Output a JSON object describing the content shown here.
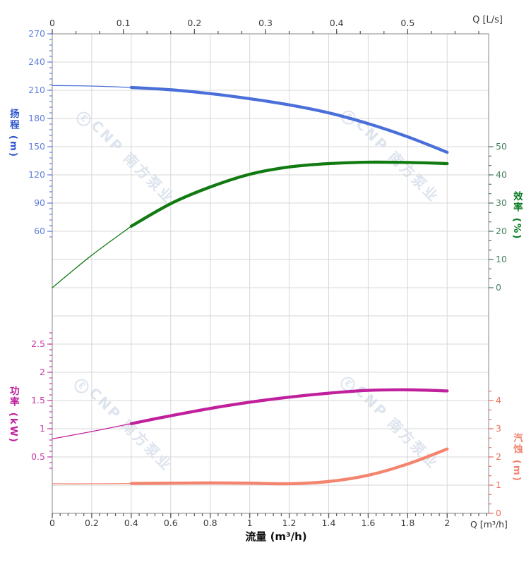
{
  "watermark": {
    "logo_glyph": "Ɛ",
    "text": "CNP 南方泵业",
    "color": "#dde4ee"
  },
  "labels": {
    "flow_axis_label": "流量 (m³/h)",
    "top_axis_unit": "Q [L/s]",
    "bottom_axis_unit": "Q [m³/h]",
    "head_axis_title": "扬程 (m)",
    "efficiency_axis_title": "效率 (%)",
    "power_axis_title": "功率 (kW)",
    "npsh_axis_title": "汽蚀 (m)"
  },
  "chart_data": {
    "type": "line",
    "title": "",
    "grid": true,
    "x": [
      0,
      0.2,
      0.4,
      0.6,
      0.8,
      1.0,
      1.2,
      1.4,
      1.6,
      1.8,
      2.0
    ],
    "x_unit": "m³/h",
    "bold_from": 0.4,
    "x_range_shown": [
      0,
      2.21
    ],
    "series": [
      {
        "name": "head",
        "label": "扬程",
        "unit": "m",
        "axis": "head",
        "color": "#4a6fd9",
        "values": [
          215,
          214.5,
          213,
          210.5,
          206.5,
          201,
          194.5,
          186,
          174.5,
          160.5,
          144
        ]
      },
      {
        "name": "efficiency",
        "label": "效率",
        "unit": "%",
        "axis": "efficiency",
        "color": "#117a11",
        "values": [
          0,
          11.5,
          21.8,
          29.8,
          35.7,
          40.2,
          42.8,
          44,
          44.5,
          44.4,
          44
        ]
      },
      {
        "name": "power",
        "label": "功率",
        "unit": "kW",
        "axis": "power",
        "color": "#c0209c",
        "values": [
          0.82,
          0.95,
          1.09,
          1.23,
          1.36,
          1.47,
          1.56,
          1.63,
          1.68,
          1.69,
          1.67
        ]
      },
      {
        "name": "npsh",
        "label": "汽蚀",
        "unit": "m",
        "axis": "npsh",
        "color": "#f4846e",
        "values": [
          1.05,
          1.05,
          1.06,
          1.07,
          1.08,
          1.07,
          1.05,
          1.13,
          1.35,
          1.75,
          2.28
        ]
      }
    ],
    "axes": [
      {
        "id": "flow_top",
        "side": "top",
        "title": "Q [L/s]",
        "tick_color": "#555555",
        "label_color": "#3c3c3c",
        "majors": [
          [
            0,
            "0"
          ],
          [
            0.1,
            "0.1"
          ],
          [
            0.2,
            "0.2"
          ],
          [
            0.3,
            "0.3"
          ],
          [
            0.4,
            "0.4"
          ],
          [
            0.5,
            "0.5"
          ]
        ],
        "minor": {
          "from": 0,
          "to": 0.6,
          "step": 0.0333333
        }
      },
      {
        "id": "head",
        "side": "left",
        "title": "扬程 (m)",
        "tick_color": "#6380db",
        "label_color": "#6380db",
        "majors": [
          [
            270,
            "270"
          ],
          [
            240,
            "240"
          ],
          [
            210,
            "210"
          ],
          [
            180,
            "180"
          ],
          [
            150,
            "150"
          ],
          [
            120,
            "120"
          ],
          [
            90,
            "90"
          ],
          [
            60,
            "60"
          ]
        ],
        "minor": {
          "from": 54,
          "to": 270,
          "step": 6
        }
      },
      {
        "id": "efficiency",
        "side": "right",
        "title": "效率 (%)",
        "tick_color": "#49805f",
        "label_color": "#49805f",
        "majors": [
          [
            50,
            "50"
          ],
          [
            40,
            "40"
          ],
          [
            30,
            "30"
          ],
          [
            20,
            "20"
          ],
          [
            10,
            "10"
          ],
          [
            0,
            "0"
          ]
        ],
        "minor": {
          "from": 0,
          "to": 50,
          "step": 3.333333
        }
      },
      {
        "id": "power",
        "side": "left",
        "title": "功率 (kW)",
        "tick_color": "#c53ba6",
        "label_color": "#c53ba6",
        "majors": [
          [
            2.5,
            "2.5"
          ],
          [
            2,
            "2"
          ],
          [
            1.5,
            "1.5"
          ],
          [
            1,
            "1"
          ],
          [
            0.5,
            "0.5"
          ]
        ],
        "minor": {
          "from": 0.3,
          "to": 2.7,
          "step": 0.1
        }
      },
      {
        "id": "npsh",
        "side": "right",
        "title": "汽蚀 (m)",
        "tick_color": "#ef7060",
        "label_color": "#ef7060",
        "majors": [
          [
            4,
            "4"
          ],
          [
            3,
            "3"
          ],
          [
            2,
            "2"
          ],
          [
            1,
            "1"
          ],
          [
            0,
            "0"
          ]
        ],
        "minor": {
          "from": 0,
          "to": 4.3334,
          "step": 0.333333
        }
      },
      {
        "id": "flow_bottom",
        "side": "bottom",
        "title": "Q [m³/h]",
        "tick_color": "#555555",
        "label_color": "#3c3c3c",
        "majors": [
          [
            0,
            "0"
          ],
          [
            0.2,
            "0.2"
          ],
          [
            0.4,
            "0.4"
          ],
          [
            0.6,
            "0.6"
          ],
          [
            0.8,
            "0.8"
          ],
          [
            1,
            "1"
          ],
          [
            1.2,
            "1.2"
          ],
          [
            1.4,
            "1.4"
          ],
          [
            1.6,
            "1.6"
          ],
          [
            1.8,
            "1.8"
          ],
          [
            2,
            "2"
          ]
        ],
        "minor": {
          "from": 0,
          "to": 2.2,
          "step": 0.04
        }
      }
    ],
    "axis_ranges": {
      "head": {
        "top_value": 270,
        "per_gridline": 30
      },
      "efficiency": {
        "zero_y_gridline": 9,
        "per_gridline": 10
      },
      "power": {
        "zero_y_gridline": 16,
        "per_gridline": 0.5
      },
      "npsh": {
        "zero_y_gridline": 17,
        "per_gridline": 1
      }
    },
    "colors": {
      "grid": "#d7d7d7",
      "border": "#9b9b9b"
    }
  }
}
